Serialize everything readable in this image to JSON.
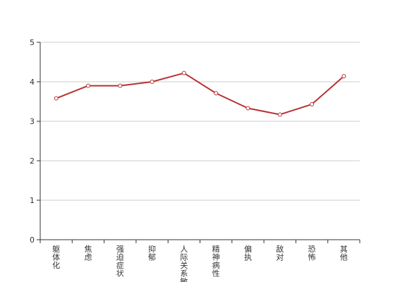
{
  "chart_data": {
    "type": "line",
    "title": "",
    "xlabel": "",
    "ylabel": "",
    "categories": [
      "躯体化",
      "焦虑",
      "强迫症状",
      "抑郁",
      "人际关系敏感",
      "精神病性",
      "偏执",
      "敌对",
      "恐怖",
      "其他"
    ],
    "series": [
      {
        "values": [
          3.58,
          3.9,
          3.9,
          4.0,
          4.22,
          3.71,
          3.33,
          3.17,
          3.43,
          4.14
        ]
      }
    ],
    "ylim": [
      0,
      5
    ],
    "yticks": [
      "0",
      "1",
      "2",
      "3",
      "4",
      "5"
    ],
    "grid": true,
    "legend": "none",
    "colors": {
      "line": "#b83232",
      "grid": "#cccccc",
      "axis": "#333333",
      "marker_fill": "#ffffff"
    }
  }
}
